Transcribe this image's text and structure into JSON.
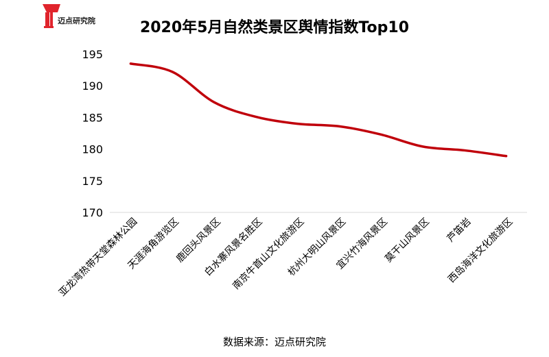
{
  "brand": {
    "logo_text": "迈点研究院",
    "accent_color": "#e0242c"
  },
  "source_note": "数据来源：迈点研究院",
  "colors": {
    "line": "#c0000b",
    "axis": "#d9d9d9",
    "text": "#000000"
  },
  "chart_data": {
    "type": "line",
    "title": "2020年5月自然类景区舆情指数Top10",
    "xlabel": "",
    "ylabel": "",
    "ylim": [
      170,
      195
    ],
    "yticks": [
      170,
      175,
      180,
      185,
      190,
      195
    ],
    "grid": false,
    "legend": "none",
    "smooth": true,
    "categories": [
      "亚龙湾热带天堂森林公园",
      "天涯海角游览区",
      "鹿回头风景区",
      "白水寨风景名胜区",
      "南京牛首山文化旅游区",
      "杭州大明山风景区",
      "宜兴竹海风景区",
      "莫干山风景区",
      "芦笛岩",
      "西岛海洋文化旅游区"
    ],
    "series": [
      {
        "values": [
          193.5,
          192.2,
          187.4,
          185.1,
          184.0,
          183.6,
          182.3,
          180.4,
          179.8,
          178.9
        ]
      }
    ]
  }
}
